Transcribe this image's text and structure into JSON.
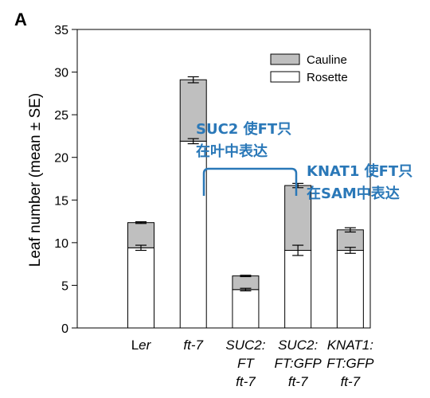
{
  "panel_label": "A",
  "chart_data": {
    "type": "bar",
    "stacked": true,
    "categories": [
      [
        "L",
        "er"
      ],
      [
        "ft-7"
      ],
      [
        "SUC2:",
        "FT",
        "ft-7"
      ],
      [
        "SUC2:",
        "FT:GFP",
        "ft-7"
      ],
      [
        "KNAT1:",
        "FT:GFP",
        "ft-7"
      ]
    ],
    "series": [
      {
        "name": "Rosette",
        "color": "#ffffff",
        "values": [
          9.4,
          21.9,
          4.5,
          9.1,
          9.1
        ],
        "error": [
          0.3,
          0.3,
          0.15,
          0.6,
          0.35
        ]
      },
      {
        "name": "Cauline",
        "color": "#bfbfbf",
        "values": [
          2.95,
          7.2,
          1.6,
          7.6,
          2.4
        ],
        "error": [
          0.1,
          0.35,
          0.08,
          0.25,
          0.25
        ]
      }
    ],
    "ylabel": "Leaf number (mean ± SE)",
    "ylim": [
      0,
      35
    ],
    "yticks": [
      0,
      5,
      10,
      15,
      20,
      25,
      30,
      35
    ],
    "legend": "top-right",
    "annotations": [
      {
        "lines": [
          "SUC2 使FT只",
          "在叶中表达"
        ]
      },
      {
        "lines": [
          "KNAT1 使FT只",
          "在SAM中表达"
        ]
      }
    ]
  }
}
